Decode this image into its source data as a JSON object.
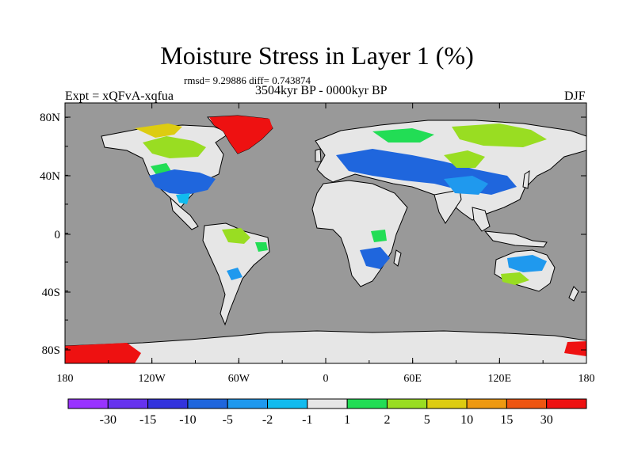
{
  "title": "Moisture Stress in Layer 1 (%)",
  "stats": "rmsd= 9.29886 diff= 0.743874",
  "period": "3504kyr BP - 0000kyr BP",
  "experiment": "Expt = xQFvA-xqfua",
  "season": "DJF",
  "map": {
    "ocean_color": "#999999",
    "land_color": "#e6e6e6",
    "lat_labels": [
      "80N",
      "40N",
      "0",
      "40S",
      "80S"
    ],
    "lon_labels": [
      "180",
      "120W",
      "60W",
      "0",
      "60E",
      "120E",
      "180"
    ]
  },
  "colorbar": {
    "colors": [
      "#9933ff",
      "#6633ee",
      "#3333dd",
      "#1f66dd",
      "#1f99ee",
      "#11bbee",
      "#e6e6e6",
      "#22dd55",
      "#99dd22",
      "#ddcc11",
      "#ee9911",
      "#ee5511",
      "#ee1111"
    ],
    "labels": [
      "-30",
      "-15",
      "-10",
      "-5",
      "-2",
      "-1",
      "1",
      "2",
      "5",
      "10",
      "15",
      "30"
    ]
  },
  "chart_data": {
    "type": "heatmap",
    "title": "Moisture Stress in Layer 1 (%)",
    "projection": "cylindrical equidistant",
    "lon_range": [
      -180,
      180
    ],
    "lat_range": [
      -90,
      90
    ],
    "x_ticks": [
      "180",
      "120W",
      "60W",
      "0",
      "60E",
      "120E",
      "180"
    ],
    "y_ticks": [
      "80N",
      "40N",
      "0",
      "40S",
      "80S"
    ],
    "levels": [
      -30,
      -15,
      -10,
      -5,
      -2,
      -1,
      1,
      2,
      5,
      10,
      15,
      30
    ],
    "ocean_masked": true,
    "regions": [
      {
        "region": "Greenland",
        "lon": [
          -60,
          -20
        ],
        "lat": [
          60,
          83
        ],
        "level": "30"
      },
      {
        "region": "Antarctica west edge",
        "lon": [
          -180,
          -145
        ],
        "lat": [
          -90,
          -80
        ],
        "level": "30"
      },
      {
        "region": "Antarctica east edge",
        "lon": [
          165,
          180
        ],
        "lat": [
          -90,
          -80
        ],
        "level": "30"
      },
      {
        "region": "Central USA",
        "lon": [
          -120,
          -75
        ],
        "lat": [
          27,
          42
        ],
        "level": "-5"
      },
      {
        "region": "Canada",
        "lon": [
          -140,
          -60
        ],
        "lat": [
          50,
          70
        ],
        "level": "5"
      },
      {
        "region": "Central Asia",
        "lon": [
          30,
          120
        ],
        "lat": [
          30,
          50
        ],
        "level": "-5"
      },
      {
        "region": "Siberia",
        "lon": [
          80,
          140
        ],
        "lat": [
          55,
          75
        ],
        "level": "5"
      },
      {
        "region": "Amazon",
        "lon": [
          -70,
          -50
        ],
        "lat": [
          -10,
          5
        ],
        "level": "5"
      },
      {
        "region": "Southern Africa",
        "lon": [
          15,
          40
        ],
        "lat": [
          -30,
          -15
        ],
        "level": "-5"
      },
      {
        "region": "Australia",
        "lon": [
          115,
          150
        ],
        "lat": [
          -35,
          -15
        ],
        "level": "-5"
      }
    ]
  }
}
